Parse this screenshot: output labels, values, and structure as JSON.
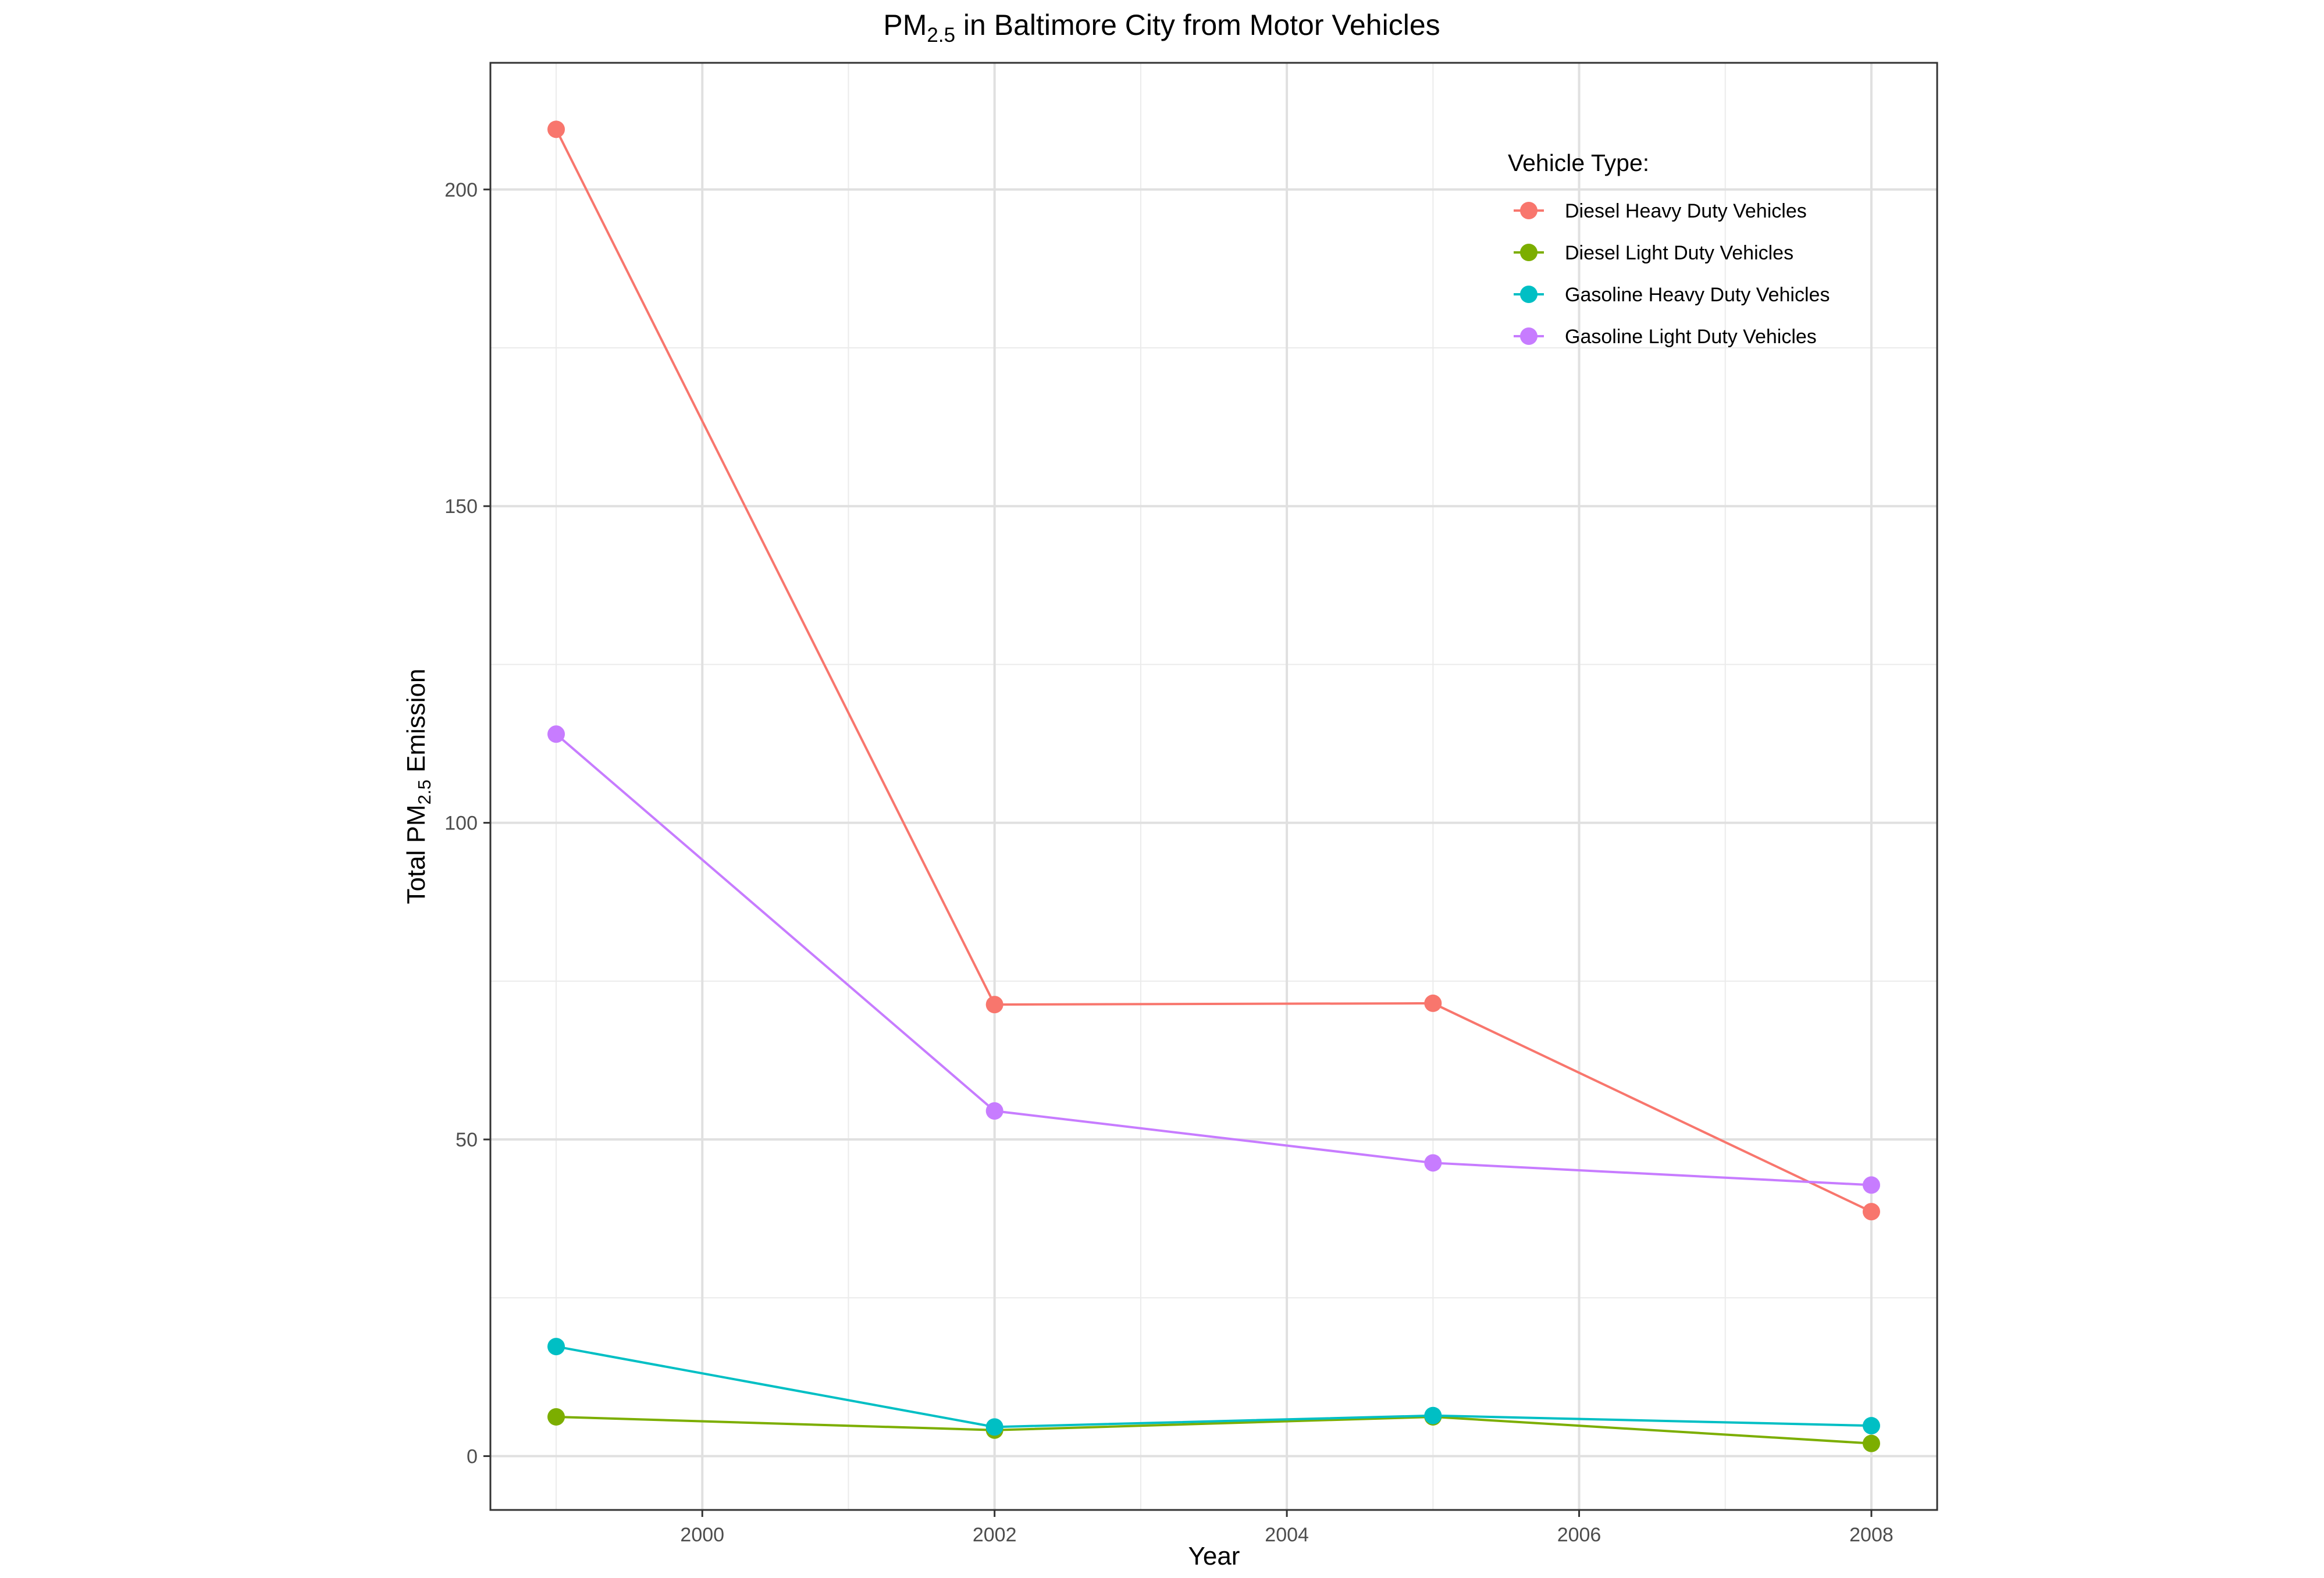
{
  "chart_data": {
    "type": "line",
    "title_main": "PM",
    "title_sub": "2.5",
    "title_rest": " in Baltimore City from Motor Vehicles",
    "xlabel": "Year",
    "ylabel_main": "Total PM",
    "ylabel_sub": "2.5",
    "ylabel_rest": " Emission",
    "x": [
      1999,
      2002,
      2005,
      2008
    ],
    "xlim": [
      1998.55,
      2008.45
    ],
    "ylim": [
      -8.5,
      220
    ],
    "x_ticks": [
      "2000",
      "2002",
      "2004",
      "2006",
      "2008"
    ],
    "y_ticks": [
      "0",
      "50",
      "100",
      "150",
      "200"
    ],
    "grid": true,
    "legend": {
      "title": "Vehicle Type:",
      "position": "top-right"
    },
    "series": [
      {
        "name": "Diesel Heavy Duty Vehicles",
        "color": "#F8766D",
        "values": [
          209.5,
          71.3,
          71.5,
          38.6
        ]
      },
      {
        "name": "Diesel Light Duty Vehicles",
        "color": "#7CAE00",
        "values": [
          6.2,
          4.1,
          6.2,
          2.0
        ]
      },
      {
        "name": "Gasoline Heavy Duty Vehicles",
        "color": "#00BFC4",
        "values": [
          17.3,
          4.6,
          6.4,
          4.8
        ]
      },
      {
        "name": "Gasoline Light Duty Vehicles",
        "color": "#C77CFF",
        "values": [
          114.0,
          54.5,
          46.3,
          42.8
        ]
      }
    ]
  }
}
